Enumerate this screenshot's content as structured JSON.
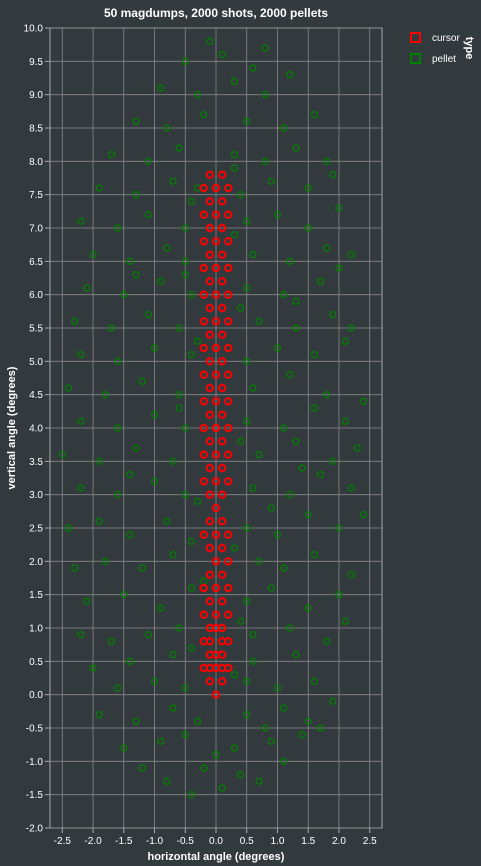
{
  "chart_data": {
    "type": "scatter",
    "title": "50 magdumps, 2000 shots, 2000 pellets",
    "xlabel": "horizontal angle (degrees)",
    "ylabel": "vertical angle (degrees)",
    "xlim": [
      -2.7,
      2.7
    ],
    "ylim": [
      -2.0,
      10.0
    ],
    "x_ticks": [
      "-2.5",
      "-2.0",
      "-1.5",
      "-1.0",
      "-0.5",
      "0.0",
      "0.5",
      "1.0",
      "1.5",
      "2.0",
      "2.5"
    ],
    "y_ticks": [
      "-2.0",
      "-1.5",
      "-1.0",
      "-0.5",
      "0.0",
      "0.5",
      "1.0",
      "1.5",
      "2.0",
      "2.5",
      "3.0",
      "3.5",
      "4.0",
      "4.5",
      "5.0",
      "5.5",
      "6.0",
      "6.5",
      "7.0",
      "7.5",
      "8.0",
      "8.5",
      "9.0",
      "9.5",
      "10.0"
    ],
    "grid": true,
    "legend": {
      "title": "type",
      "placement": "top-right",
      "entries": [
        "cursor",
        "pellet"
      ]
    },
    "colors": {
      "cursor": "#ff0000",
      "pellet": "#008000",
      "grid": "#888888",
      "background": "#333a3d"
    },
    "series": [
      {
        "name": "cursor",
        "points": [
          [
            0.0,
            0.0
          ],
          [
            -0.1,
            0.2
          ],
          [
            0.1,
            0.2
          ],
          [
            -0.1,
            0.4
          ],
          [
            0.0,
            0.4
          ],
          [
            0.1,
            0.4
          ],
          [
            -0.2,
            0.4
          ],
          [
            0.2,
            0.4
          ],
          [
            -0.1,
            0.6
          ],
          [
            0.0,
            0.6
          ],
          [
            0.1,
            0.6
          ],
          [
            -0.1,
            0.8
          ],
          [
            0.1,
            0.8
          ],
          [
            -0.2,
            0.8
          ],
          [
            0.2,
            0.8
          ],
          [
            -0.1,
            1.0
          ],
          [
            0.0,
            1.0
          ],
          [
            0.1,
            1.0
          ],
          [
            0.0,
            1.2
          ],
          [
            0.2,
            1.2
          ],
          [
            -0.2,
            1.2
          ],
          [
            -0.1,
            1.4
          ],
          [
            0.1,
            1.4
          ],
          [
            0.0,
            1.6
          ],
          [
            -0.2,
            1.6
          ],
          [
            0.2,
            1.6
          ],
          [
            -0.1,
            1.8
          ],
          [
            0.1,
            1.8
          ],
          [
            0.0,
            2.0
          ],
          [
            0.2,
            2.0
          ],
          [
            -0.1,
            2.2
          ],
          [
            0.1,
            2.2
          ],
          [
            -0.2,
            2.4
          ],
          [
            0.0,
            2.4
          ],
          [
            0.2,
            2.4
          ],
          [
            -0.1,
            2.6
          ],
          [
            0.1,
            2.6
          ],
          [
            0.0,
            2.8
          ],
          [
            -0.1,
            3.0
          ],
          [
            0.1,
            3.0
          ],
          [
            0.0,
            3.2
          ],
          [
            -0.2,
            3.2
          ],
          [
            0.2,
            3.2
          ],
          [
            -0.1,
            3.4
          ],
          [
            0.1,
            3.4
          ],
          [
            0.0,
            3.6
          ],
          [
            -0.2,
            3.6
          ],
          [
            0.2,
            3.6
          ],
          [
            -0.1,
            3.8
          ],
          [
            0.1,
            3.8
          ],
          [
            0.0,
            4.0
          ],
          [
            -0.2,
            4.0
          ],
          [
            0.2,
            4.0
          ],
          [
            -0.1,
            4.2
          ],
          [
            0.1,
            4.2
          ],
          [
            0.0,
            4.4
          ],
          [
            -0.2,
            4.4
          ],
          [
            0.2,
            4.4
          ],
          [
            -0.1,
            4.6
          ],
          [
            0.1,
            4.6
          ],
          [
            0.0,
            4.8
          ],
          [
            -0.2,
            4.8
          ],
          [
            0.2,
            4.8
          ],
          [
            -0.1,
            5.0
          ],
          [
            0.1,
            5.0
          ],
          [
            0.0,
            5.2
          ],
          [
            -0.2,
            5.2
          ],
          [
            0.2,
            5.2
          ],
          [
            -0.1,
            5.4
          ],
          [
            0.1,
            5.4
          ],
          [
            0.0,
            5.6
          ],
          [
            -0.2,
            5.6
          ],
          [
            0.2,
            5.6
          ],
          [
            -0.1,
            5.8
          ],
          [
            0.1,
            5.8
          ],
          [
            0.0,
            6.0
          ],
          [
            -0.2,
            6.0
          ],
          [
            0.2,
            6.0
          ],
          [
            -0.1,
            6.2
          ],
          [
            0.1,
            6.2
          ],
          [
            0.0,
            6.4
          ],
          [
            -0.2,
            6.4
          ],
          [
            0.2,
            6.4
          ],
          [
            -0.1,
            6.6
          ],
          [
            0.1,
            6.6
          ],
          [
            0.0,
            6.8
          ],
          [
            -0.2,
            6.8
          ],
          [
            0.2,
            6.8
          ],
          [
            -0.1,
            7.0
          ],
          [
            0.1,
            7.0
          ],
          [
            0.0,
            7.2
          ],
          [
            -0.2,
            7.2
          ],
          [
            0.2,
            7.2
          ],
          [
            -0.1,
            7.4
          ],
          [
            0.1,
            7.4
          ],
          [
            0.0,
            7.6
          ],
          [
            -0.2,
            7.6
          ],
          [
            0.2,
            7.6
          ],
          [
            -0.1,
            7.8
          ],
          [
            0.1,
            7.8
          ]
        ]
      },
      {
        "name": "pellet",
        "points": [
          [
            -0.4,
            -1.5
          ],
          [
            0.1,
            -1.4
          ],
          [
            -0.8,
            -1.3
          ],
          [
            0.7,
            -1.3
          ],
          [
            -1.2,
            -1.1
          ],
          [
            1.1,
            -1.0
          ],
          [
            -0.2,
            -1.1
          ],
          [
            0.4,
            -1.2
          ],
          [
            -1.5,
            -0.8
          ],
          [
            -0.9,
            -0.7
          ],
          [
            0.3,
            -0.8
          ],
          [
            0.9,
            -0.7
          ],
          [
            1.4,
            -0.6
          ],
          [
            -0.5,
            -0.6
          ],
          [
            0.0,
            -0.9
          ],
          [
            1.7,
            -0.5
          ],
          [
            -1.9,
            -0.3
          ],
          [
            -1.3,
            -0.4
          ],
          [
            -0.7,
            -0.2
          ],
          [
            0.5,
            -0.3
          ],
          [
            1.1,
            -0.2
          ],
          [
            1.5,
            -0.4
          ],
          [
            -0.3,
            -0.4
          ],
          [
            0.8,
            -0.5
          ],
          [
            -1.6,
            0.1
          ],
          [
            -1.0,
            0.2
          ],
          [
            -0.5,
            0.1
          ],
          [
            0.5,
            0.2
          ],
          [
            1.0,
            0.1
          ],
          [
            1.6,
            0.2
          ],
          [
            1.9,
            -0.1
          ],
          [
            -2.0,
            0.4
          ],
          [
            -1.4,
            0.5
          ],
          [
            -0.7,
            0.6
          ],
          [
            0.6,
            0.5
          ],
          [
            1.3,
            0.6
          ],
          [
            -2.2,
            0.9
          ],
          [
            -1.7,
            0.8
          ],
          [
            -1.1,
            0.9
          ],
          [
            -0.6,
            1.0
          ],
          [
            0.6,
            0.9
          ],
          [
            1.2,
            1.0
          ],
          [
            1.8,
            0.8
          ],
          [
            2.1,
            1.1
          ],
          [
            -2.1,
            1.4
          ],
          [
            -1.5,
            1.5
          ],
          [
            -0.9,
            1.3
          ],
          [
            -0.4,
            1.6
          ],
          [
            0.5,
            1.4
          ],
          [
            0.9,
            1.6
          ],
          [
            1.5,
            1.3
          ],
          [
            2.0,
            1.5
          ],
          [
            -2.3,
            1.9
          ],
          [
            -1.8,
            2.0
          ],
          [
            -1.2,
            1.9
          ],
          [
            -0.7,
            2.1
          ],
          [
            0.7,
            2.0
          ],
          [
            1.1,
            1.9
          ],
          [
            1.6,
            2.1
          ],
          [
            2.2,
            1.8
          ],
          [
            -2.4,
            2.5
          ],
          [
            -1.9,
            2.6
          ],
          [
            -1.4,
            2.4
          ],
          [
            -0.8,
            2.6
          ],
          [
            -0.4,
            2.3
          ],
          [
            0.5,
            2.5
          ],
          [
            1.0,
            2.4
          ],
          [
            1.5,
            2.7
          ],
          [
            2.0,
            2.5
          ],
          [
            2.4,
            2.7
          ],
          [
            -2.2,
            3.1
          ],
          [
            -1.6,
            3.0
          ],
          [
            -1.0,
            3.2
          ],
          [
            -0.5,
            3.0
          ],
          [
            0.6,
            3.1
          ],
          [
            1.2,
            3.0
          ],
          [
            1.7,
            3.3
          ],
          [
            2.2,
            3.1
          ],
          [
            -2.5,
            3.6
          ],
          [
            -1.9,
            3.5
          ],
          [
            -1.3,
            3.7
          ],
          [
            -0.7,
            3.5
          ],
          [
            0.7,
            3.6
          ],
          [
            1.3,
            3.8
          ],
          [
            1.9,
            3.5
          ],
          [
            2.3,
            3.7
          ],
          [
            -2.2,
            4.1
          ],
          [
            -1.6,
            4.0
          ],
          [
            -1.0,
            4.2
          ],
          [
            -0.5,
            4.0
          ],
          [
            0.5,
            4.1
          ],
          [
            1.1,
            4.0
          ],
          [
            1.6,
            4.3
          ],
          [
            2.1,
            4.1
          ],
          [
            -2.4,
            4.6
          ],
          [
            -1.8,
            4.5
          ],
          [
            -1.2,
            4.7
          ],
          [
            -0.6,
            4.5
          ],
          [
            0.6,
            4.6
          ],
          [
            1.2,
            4.8
          ],
          [
            1.8,
            4.5
          ],
          [
            2.4,
            4.4
          ],
          [
            -2.2,
            5.1
          ],
          [
            -1.6,
            5.0
          ],
          [
            -1.0,
            5.2
          ],
          [
            -0.4,
            5.1
          ],
          [
            0.5,
            5.0
          ],
          [
            1.0,
            5.2
          ],
          [
            1.6,
            5.1
          ],
          [
            2.1,
            5.3
          ],
          [
            -2.3,
            5.6
          ],
          [
            -1.7,
            5.5
          ],
          [
            -1.1,
            5.7
          ],
          [
            -0.6,
            5.5
          ],
          [
            0.7,
            5.6
          ],
          [
            1.3,
            5.5
          ],
          [
            1.9,
            5.7
          ],
          [
            2.2,
            5.5
          ],
          [
            -2.1,
            6.1
          ],
          [
            -1.5,
            6.0
          ],
          [
            -0.9,
            6.2
          ],
          [
            -0.4,
            6.0
          ],
          [
            0.5,
            6.1
          ],
          [
            1.1,
            6.0
          ],
          [
            1.7,
            6.2
          ],
          [
            2.0,
            6.4
          ],
          [
            -2.0,
            6.6
          ],
          [
            -1.4,
            6.5
          ],
          [
            -0.8,
            6.7
          ],
          [
            -0.5,
            6.5
          ],
          [
            0.6,
            6.6
          ],
          [
            1.2,
            6.5
          ],
          [
            1.8,
            6.7
          ],
          [
            2.2,
            6.6
          ],
          [
            -2.2,
            7.1
          ],
          [
            -1.6,
            7.0
          ],
          [
            -1.1,
            7.2
          ],
          [
            -0.5,
            7.0
          ],
          [
            0.5,
            7.1
          ],
          [
            1.0,
            7.2
          ],
          [
            1.5,
            7.0
          ],
          [
            2.0,
            7.3
          ],
          [
            -1.9,
            7.6
          ],
          [
            -1.3,
            7.5
          ],
          [
            -0.7,
            7.7
          ],
          [
            -0.3,
            7.6
          ],
          [
            0.4,
            7.5
          ],
          [
            0.9,
            7.7
          ],
          [
            1.5,
            7.6
          ],
          [
            1.9,
            7.8
          ],
          [
            -1.7,
            8.1
          ],
          [
            -1.1,
            8.0
          ],
          [
            -0.6,
            8.2
          ],
          [
            0.3,
            8.1
          ],
          [
            0.8,
            8.0
          ],
          [
            1.3,
            8.2
          ],
          [
            1.8,
            8.0
          ],
          [
            -1.3,
            8.6
          ],
          [
            -0.8,
            8.5
          ],
          [
            -0.2,
            8.7
          ],
          [
            0.5,
            8.6
          ],
          [
            1.1,
            8.5
          ],
          [
            1.6,
            8.7
          ],
          [
            -0.9,
            9.1
          ],
          [
            -0.3,
            9.0
          ],
          [
            0.3,
            9.2
          ],
          [
            0.8,
            9.0
          ],
          [
            1.2,
            9.3
          ],
          [
            -0.5,
            9.5
          ],
          [
            0.1,
            9.6
          ],
          [
            0.6,
            9.4
          ],
          [
            -0.1,
            9.8
          ],
          [
            0.8,
            9.7
          ],
          [
            -0.6,
            4.3
          ],
          [
            0.4,
            3.8
          ],
          [
            -0.3,
            2.9
          ],
          [
            0.3,
            2.2
          ],
          [
            -0.2,
            1.7
          ],
          [
            0.4,
            1.1
          ],
          [
            -0.4,
            0.7
          ],
          [
            0.3,
            0.3
          ],
          [
            -0.3,
            5.3
          ],
          [
            0.4,
            5.8
          ],
          [
            -0.5,
            6.3
          ],
          [
            0.3,
            6.9
          ],
          [
            -0.4,
            7.4
          ],
          [
            0.3,
            7.9
          ],
          [
            1.4,
            3.4
          ],
          [
            -1.4,
            3.3
          ],
          [
            1.3,
            5.9
          ],
          [
            -1.3,
            6.3
          ],
          [
            0.9,
            2.8
          ]
        ]
      }
    ]
  }
}
